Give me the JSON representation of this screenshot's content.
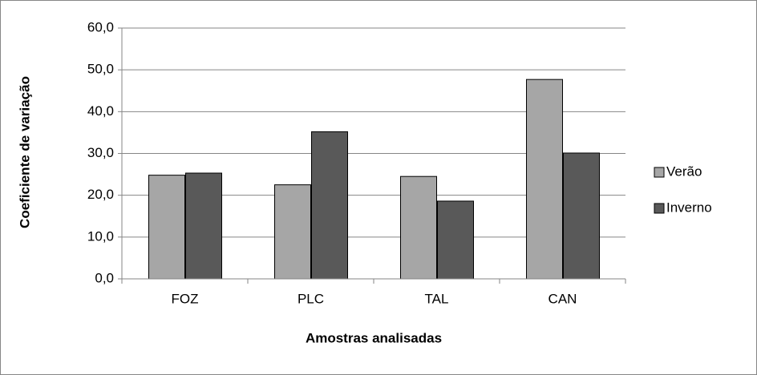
{
  "chart_data": {
    "type": "bar",
    "categories": [
      "FOZ",
      "PLC",
      "TAL",
      "CAN"
    ],
    "series": [
      {
        "name": "Verão",
        "color": "#a6a6a6",
        "values": [
          24.8,
          22.5,
          24.5,
          47.7
        ]
      },
      {
        "name": "Inverno",
        "color": "#595959",
        "values": [
          25.3,
          35.2,
          18.6,
          30.1
        ]
      }
    ],
    "x_label": "Amostras analisadas",
    "y_label": "Coeficiente de variação",
    "ylim": [
      0,
      60
    ],
    "yticks": [
      {
        "value": 0,
        "label": "0,0"
      },
      {
        "value": 10,
        "label": "10,0"
      },
      {
        "value": 20,
        "label": "20,0"
      },
      {
        "value": 30,
        "label": "30,0"
      },
      {
        "value": 40,
        "label": "40,0"
      },
      {
        "value": 50,
        "label": "50,0"
      },
      {
        "value": 60,
        "label": "60,0"
      }
    ],
    "grid": true,
    "legend": "right"
  }
}
